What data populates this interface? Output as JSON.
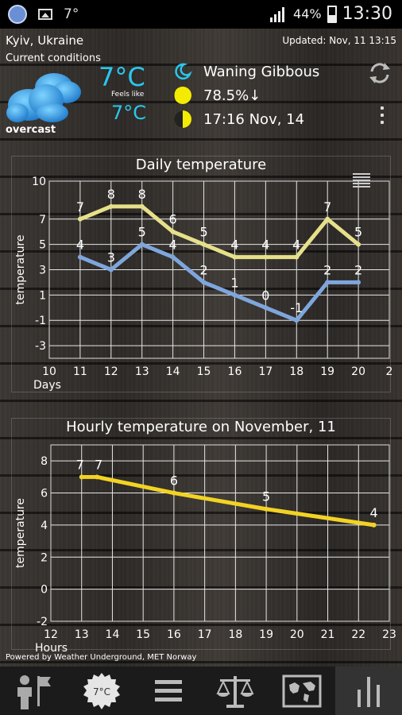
{
  "status_bar": {
    "temp": "7°",
    "battery": "44%",
    "time": "13:30"
  },
  "header": {
    "location": "Kyiv, Ukraine",
    "updated": "Updated: Nov, 11 13:15",
    "conditions_title": "Current conditions",
    "condition": "overcast",
    "temperature": "7°C",
    "feels_like_label": "Feels like",
    "feels_like": "7°C",
    "moon_phase": "Waning Gibbous",
    "moon_illumination": "78.5%↓",
    "moon_event": "17:16  Nov, 14"
  },
  "daily": {
    "title": "Daily temperature",
    "ylabel": "temperature",
    "xlabel": "Days"
  },
  "hourly": {
    "title": "Hourly temperature on November, 11",
    "ylabel": "temperature",
    "xlabel": "Hours"
  },
  "chart_data": [
    {
      "type": "line",
      "title": "Daily temperature",
      "xlabel": "Days",
      "ylabel": "temperature",
      "xlim": [
        10,
        21
      ],
      "ylim": [
        -4,
        10
      ],
      "x_ticks": [
        "10",
        "11",
        "12",
        "13",
        "14",
        "15",
        "16",
        "17",
        "18",
        "19",
        "20",
        "2"
      ],
      "y_ticks": [
        "-3",
        "-1",
        "1",
        "3",
        "5",
        "7",
        "10"
      ],
      "grid": true,
      "series": [
        {
          "color": "#e6e08a",
          "x": [
            11,
            12,
            13,
            14,
            15,
            16,
            17,
            18,
            19,
            20
          ],
          "values": [
            7,
            8,
            8,
            6,
            5,
            4,
            4,
            4,
            7,
            5
          ]
        },
        {
          "color": "#7ea6dc",
          "x": [
            11,
            12,
            13,
            14,
            15,
            16,
            17,
            18,
            19,
            20
          ],
          "values": [
            4,
            3,
            5,
            4,
            2,
            1,
            0,
            -1,
            2,
            2
          ]
        }
      ]
    },
    {
      "type": "line",
      "title": "Hourly temperature on November, 11",
      "xlabel": "Hours",
      "ylabel": "temperature",
      "xlim": [
        12,
        23
      ],
      "ylim": [
        -2,
        9
      ],
      "x_ticks": [
        "12",
        "13",
        "14",
        "15",
        "16",
        "17",
        "18",
        "19",
        "20",
        "21",
        "22",
        "23"
      ],
      "y_ticks": [
        "-2",
        "0",
        "2",
        "4",
        "6",
        "8"
      ],
      "grid": true,
      "series": [
        {
          "color": "#f2d324",
          "x": [
            13,
            13.5,
            16,
            19,
            22.5
          ],
          "values": [
            7,
            7,
            6,
            5,
            4
          ]
        }
      ]
    }
  ],
  "footer": {
    "powered_by": "Powered by Weather Underground, MET Norway",
    "tab_temp_badge": "7°C"
  },
  "icons": [
    "app-icon",
    "image-icon",
    "signal-icon",
    "battery-icon",
    "cloud-icon",
    "moon-crescent-icon",
    "moon-gibbous-icon",
    "moon-half-icon",
    "refresh-icon",
    "overflow-menu-icon",
    "legend-icon",
    "person-flag-icon",
    "temperature-badge-icon",
    "list-icon",
    "scales-icon",
    "map-icon",
    "bar-chart-icon"
  ]
}
